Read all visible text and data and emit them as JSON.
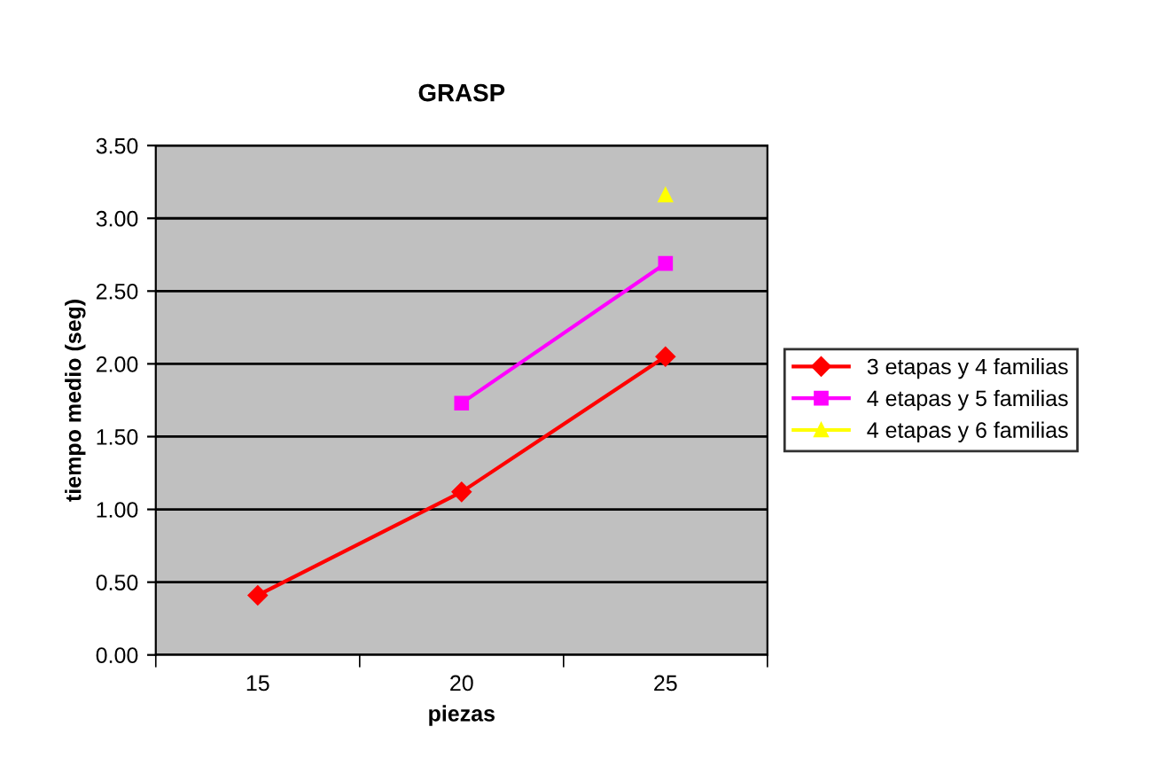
{
  "chart_data": {
    "type": "line",
    "title": "GRASP",
    "xlabel": "piezas",
    "ylabel": "tiempo medio (seg)",
    "categories": [
      "15",
      "20",
      "25"
    ],
    "series": [
      {
        "name": "3 etapas y 4 familias",
        "color": "#ff0000",
        "marker": "diamond",
        "values": [
          0.41,
          1.12,
          2.05
        ]
      },
      {
        "name": "4 etapas y 5 familias",
        "color": "#ff00ff",
        "marker": "square",
        "values": [
          null,
          1.73,
          2.69
        ]
      },
      {
        "name": "4 etapas y 6 familias",
        "color": "#ffff00",
        "marker": "triangle",
        "values": [
          null,
          null,
          3.16
        ]
      }
    ],
    "ylim": [
      0,
      3.5
    ],
    "yticks": [
      {
        "value": 0,
        "label": "0.00"
      },
      {
        "value": 0.5,
        "label": "0.50"
      },
      {
        "value": 1,
        "label": "1.00"
      },
      {
        "value": 1.5,
        "label": "1.50"
      },
      {
        "value": 2,
        "label": "2.00"
      },
      {
        "value": 2.5,
        "label": "2.50"
      },
      {
        "value": 3,
        "label": "3.00"
      },
      {
        "value": 3.5,
        "label": "3.50"
      }
    ],
    "grid": "y",
    "legend": "right",
    "line_style": "solid"
  }
}
